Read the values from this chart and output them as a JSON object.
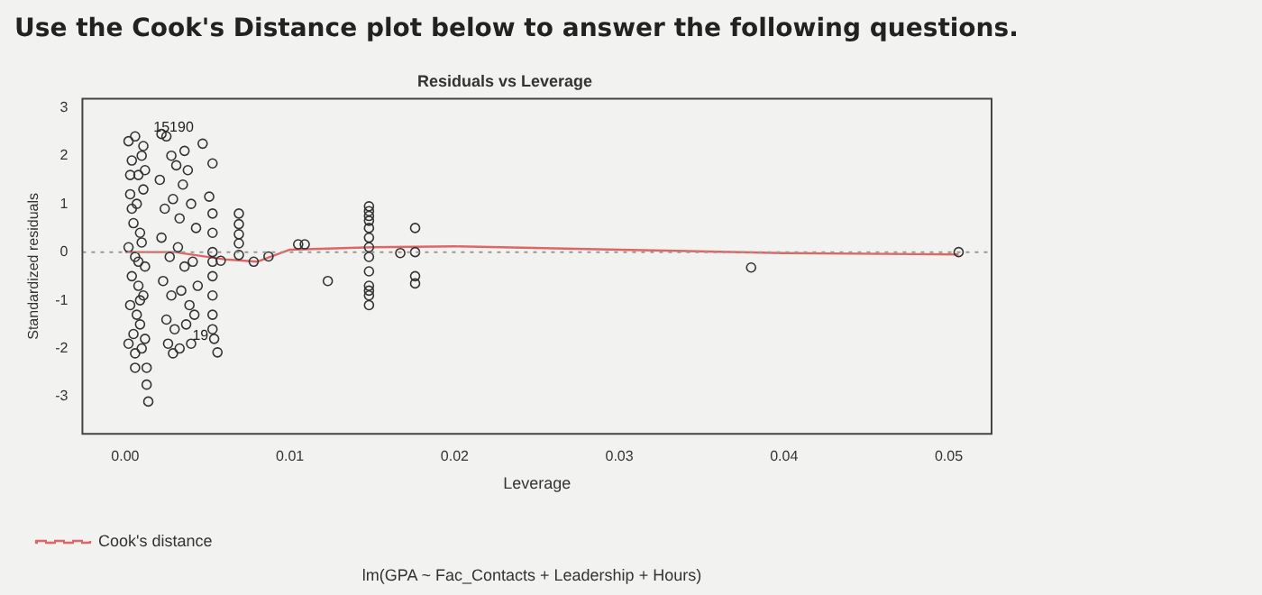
{
  "chart_data": {
    "type": "scatter",
    "title": "Residuals vs Leverage",
    "xlabel": "Leverage",
    "ylabel": "Standardized residuals",
    "annotations": [
      "Use the Cook's Distance plot below to answer the following questions.",
      "lm(GPA ~ Fac_Contacts + Leadership + Hours)",
      {
        "text": "15190",
        "x": 0.0047,
        "y": 2.25
      },
      {
        "text": "19",
        "x": 0.0056,
        "y": -2.08
      }
    ],
    "xlim": [
      -0.0026,
      0.0526
    ],
    "xticks": [
      {
        "value": 0,
        "label": "0.00"
      },
      {
        "value": 0.01,
        "label": "0.01"
      },
      {
        "value": 0.02,
        "label": "0.02"
      },
      {
        "value": 0.03,
        "label": "0.03"
      },
      {
        "value": 0.04,
        "label": "0.04"
      },
      {
        "value": 0.05,
        "label": "0.05"
      }
    ],
    "ylim": [
      -3.77,
      3.18
    ],
    "yticks": [
      -3,
      -2,
      -1,
      0,
      1,
      2,
      3
    ],
    "grid": false,
    "legend": "bottom left",
    "ref_lines": [
      {
        "axis": "y",
        "value": 0,
        "color": "#999999",
        "line_style": "dotted"
      }
    ],
    "series": [
      {
        "type": "scatter",
        "color": "#333333",
        "marker": "circle",
        "x": [
          0.0002,
          0.0004,
          0.0006,
          0.0008,
          0.001,
          0.0003,
          0.0007,
          0.0011,
          0.0005,
          0.0009,
          0.0002,
          0.0006,
          0.001,
          0.0004,
          0.0008,
          0.0012,
          0.0003,
          0.0007,
          0.0011,
          0.0005,
          0.0009,
          0.0002,
          0.0006,
          0.001,
          0.0012,
          0.0004,
          0.0008,
          0.0006,
          0.0013,
          0.0013,
          0.0014,
          0.0011,
          0.0009,
          0.0003,
          0.0012,
          0.0022,
          0.0025,
          0.0028,
          0.0021,
          0.0031,
          0.0035,
          0.0038,
          0.0024,
          0.0029,
          0.0033,
          0.004,
          0.0043,
          0.0022,
          0.0027,
          0.0032,
          0.0036,
          0.0041,
          0.0023,
          0.0028,
          0.0034,
          0.0039,
          0.0044,
          0.0025,
          0.003,
          0.0037,
          0.0042,
          0.0026,
          0.0033,
          0.004,
          0.0029,
          0.0036,
          0.0047,
          0.0053,
          0.0051,
          0.0053,
          0.0053,
          0.0053,
          0.0053,
          0.0053,
          0.0053,
          0.0053,
          0.0053,
          0.0056,
          0.0058,
          0.0054,
          0.0069,
          0.0069,
          0.0069,
          0.0069,
          0.0069,
          0.0078,
          0.0087,
          0.0105,
          0.0109,
          0.0123,
          0.0148,
          0.0148,
          0.0148,
          0.0148,
          0.0148,
          0.0148,
          0.0148,
          0.0148,
          0.0148,
          0.0148,
          0.0148,
          0.0148,
          0.0148,
          0.0167,
          0.0176,
          0.0176,
          0.0176,
          0.0176,
          0.038,
          0.0506
        ],
        "values": [
          2.3,
          1.9,
          2.4,
          1.6,
          2.0,
          1.2,
          1.0,
          1.3,
          0.6,
          0.4,
          0.1,
          -0.1,
          0.2,
          -0.5,
          -0.7,
          -0.3,
          -1.1,
          -1.3,
          -0.9,
          -1.7,
          -1.5,
          -1.9,
          -2.1,
          -2.0,
          1.7,
          0.9,
          -0.2,
          -2.4,
          -2.4,
          -2.75,
          -3.1,
          2.2,
          -1.0,
          1.6,
          -1.8,
          2.45,
          2.4,
          2.0,
          1.5,
          1.8,
          1.4,
          1.7,
          0.9,
          1.1,
          0.7,
          1.0,
          0.5,
          0.3,
          -0.1,
          0.1,
          -0.3,
          -0.2,
          -0.6,
          -0.9,
          -0.8,
          -1.1,
          -0.7,
          -1.4,
          -1.6,
          -1.5,
          -1.3,
          -1.9,
          -2.0,
          -1.9,
          -2.1,
          2.1,
          2.25,
          1.84,
          1.15,
          0.8,
          0.4,
          0.0,
          -0.2,
          -0.5,
          -0.9,
          -1.3,
          -1.6,
          -2.08,
          -0.18,
          -1.8,
          0.8,
          0.58,
          0.37,
          0.18,
          -0.06,
          -0.2,
          -0.09,
          0.16,
          0.16,
          -0.6,
          0.95,
          0.85,
          0.75,
          0.65,
          0.5,
          0.3,
          0.1,
          -0.1,
          -0.4,
          -0.7,
          -0.8,
          -0.9,
          -1.1,
          -0.02,
          0.5,
          0.0,
          -0.5,
          -0.65,
          -0.32,
          0.0
        ]
      },
      {
        "type": "line",
        "color": "#e06666",
        "marker": "none",
        "line_style": "solid",
        "x": [
          0,
          0.003,
          0.006,
          0.008,
          0.01,
          0.015,
          0.02,
          0.03,
          0.04,
          0.0506
        ],
        "values": [
          0,
          0,
          -0.15,
          -0.2,
          0.05,
          0.1,
          0.12,
          0.05,
          -0.02,
          -0.05
        ]
      },
      {
        "type": "line",
        "name": "Cook's distance",
        "color": "#e06666",
        "marker": "none",
        "line_style": "dashed"
      }
    ]
  }
}
